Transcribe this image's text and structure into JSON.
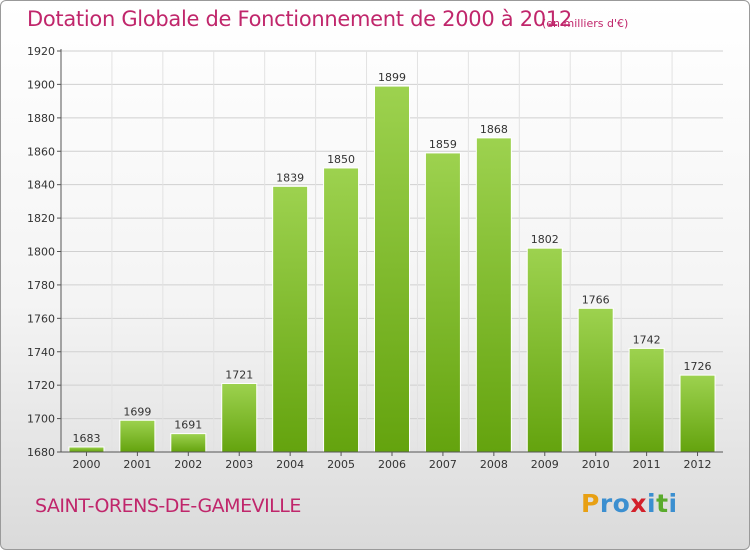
{
  "title": "Dotation Globale de Fonctionnement de 2000 à 2012",
  "unit": "(en milliers d'€)",
  "place": "SAINT-ORENS-DE-GAMEVILLE",
  "logo": {
    "letters": [
      "P",
      "r",
      "o",
      "x",
      "i",
      "t",
      "i"
    ],
    "colors": [
      "#e8a013",
      "#3b8fd0",
      "#3b8fd0",
      "#d3202a",
      "#3b8fd0",
      "#5aab2d",
      "#3b8fd0"
    ]
  },
  "colors": {
    "bar_top": "#9dd24f",
    "bar_bottom": "#64a30e",
    "title": "#c0266b"
  },
  "chart_data": {
    "type": "bar",
    "categories": [
      "2000",
      "2001",
      "2002",
      "2003",
      "2004",
      "2005",
      "2006",
      "2007",
      "2008",
      "2009",
      "2010",
      "2011",
      "2012"
    ],
    "values": [
      1683,
      1699,
      1691,
      1721,
      1839,
      1850,
      1899,
      1859,
      1868,
      1802,
      1766,
      1742,
      1726
    ],
    "ylim": [
      1680,
      1920
    ],
    "yticks": [
      1680,
      1700,
      1720,
      1740,
      1760,
      1780,
      1800,
      1820,
      1840,
      1860,
      1880,
      1900,
      1920
    ],
    "grid": true,
    "xlabel": "",
    "ylabel": ""
  }
}
